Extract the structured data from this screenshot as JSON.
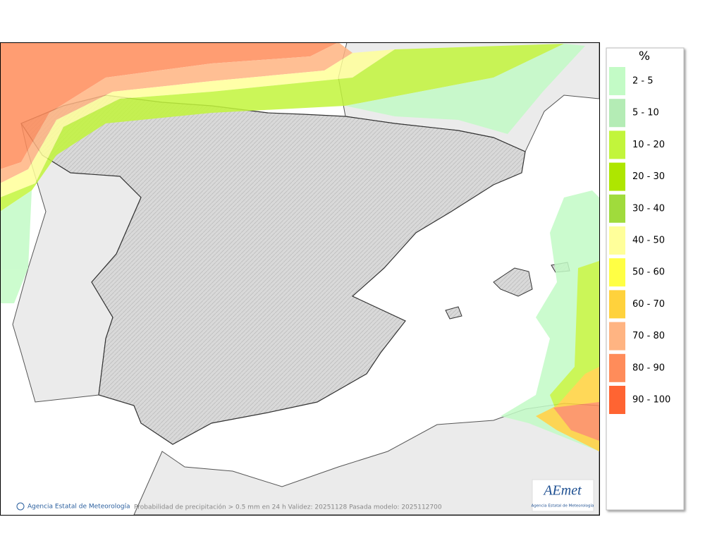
{
  "legend": {
    "title": "%",
    "items": [
      {
        "label": "2 - 5",
        "color": "#c3fbc6"
      },
      {
        "label": "5 - 10",
        "color": "#b4ecb5"
      },
      {
        "label": "10 - 20",
        "color": "#c2f53b"
      },
      {
        "label": "20 - 30",
        "color": "#aee600"
      },
      {
        "label": "30 - 40",
        "color": "#a0db3c"
      },
      {
        "label": "40 - 50",
        "color": "#ffff9a"
      },
      {
        "label": "50 - 60",
        "color": "#ffff44"
      },
      {
        "label": "60 - 70",
        "color": "#ffd23c"
      },
      {
        "label": "70 - 80",
        "color": "#ffb482"
      },
      {
        "label": "80 - 90",
        "color": "#ff8c5a"
      },
      {
        "label": "90 - 100",
        "color": "#ff6432"
      }
    ]
  },
  "footer": {
    "credit": "Agencia Estatal de Meteorología",
    "caption": "Probabilidad de precipitación > 0.5 mm en 24 h Validez: 20251128 Pasada modelo: 2025112700"
  },
  "logo": {
    "name": "AEmet",
    "subtitle": "Agencia Estatal de Meteorología"
  }
}
